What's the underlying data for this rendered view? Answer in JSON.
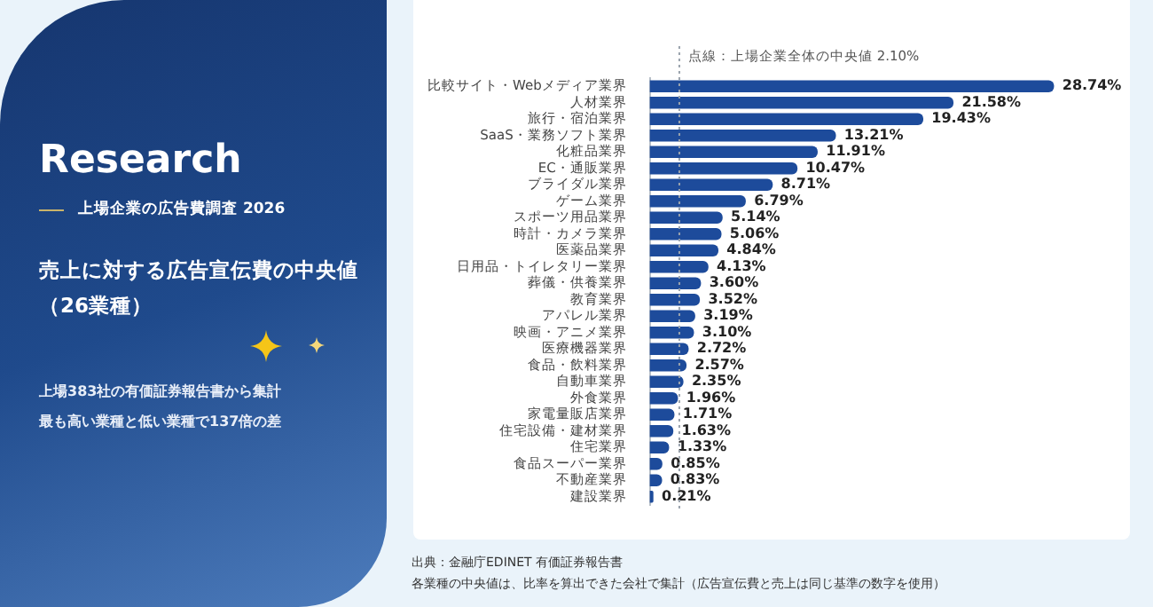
{
  "chart_data": {
    "type": "bar",
    "orientation": "horizontal",
    "title": "売上に対する広告宣伝費の中央値（26業種）",
    "subtitle": "上場企業の広告費調査 2026",
    "annotations": [
      "Research",
      "上場383社の有価証券報告書から集計",
      "最も高い業種と低い業種で137倍の差",
      "出典：金融庁EDINET 有価証券報告書",
      "各業種の中央値は、比率を算出できた会社で集計（広告宣伝費と売上は同じ基準の数字を使用）"
    ],
    "categories": [
      "比較サイト・Webメディア業界",
      "人材業界",
      "旅行・宿泊業界",
      "SaaS・業務ソフト業界",
      "化粧品業界",
      "EC・通販業界",
      "ブライダル業界",
      "ゲーム業界",
      "スポーツ用品業界",
      "時計・カメラ業界",
      "医薬品業界",
      "日用品・トイレタリー業界",
      "葬儀・供養業界",
      "教育業界",
      "アパレル業界",
      "映画・アニメ業界",
      "医療機器業界",
      "食品・飲料業界",
      "自動車業界",
      "外食業界",
      "家電量販店業界",
      "住宅設備・建材業界",
      "住宅業界",
      "食品スーパー業界",
      "不動産業界",
      "建設業界"
    ],
    "values": [
      28.74,
      21.58,
      19.43,
      13.21,
      11.91,
      10.47,
      8.71,
      6.79,
      5.14,
      5.06,
      4.84,
      4.13,
      3.6,
      3.52,
      3.19,
      3.1,
      2.72,
      2.57,
      2.35,
      1.96,
      1.71,
      1.63,
      1.33,
      0.85,
      0.83,
      0.21
    ],
    "value_labels": [
      "28.74%",
      "21.58%",
      "19.43%",
      "13.21%",
      "11.91%",
      "10.47%",
      "8.71%",
      "6.79%",
      "5.14%",
      "5.06%",
      "4.84%",
      "4.13%",
      "3.60%",
      "3.52%",
      "3.19%",
      "3.10%",
      "2.72%",
      "2.57%",
      "2.35%",
      "1.96%",
      "1.71%",
      "1.63%",
      "1.33%",
      "0.85%",
      "0.83%",
      "0.21%"
    ],
    "color": "#1d4b9b",
    "tick_labels": "y",
    "ref_lines": [
      {
        "axis": "x",
        "value": 2.1,
        "label": "点線：上場企業全体の中央値 2.10%",
        "color": "#9aa3ad",
        "line_style": "dotted"
      }
    ],
    "legend": false
  }
}
